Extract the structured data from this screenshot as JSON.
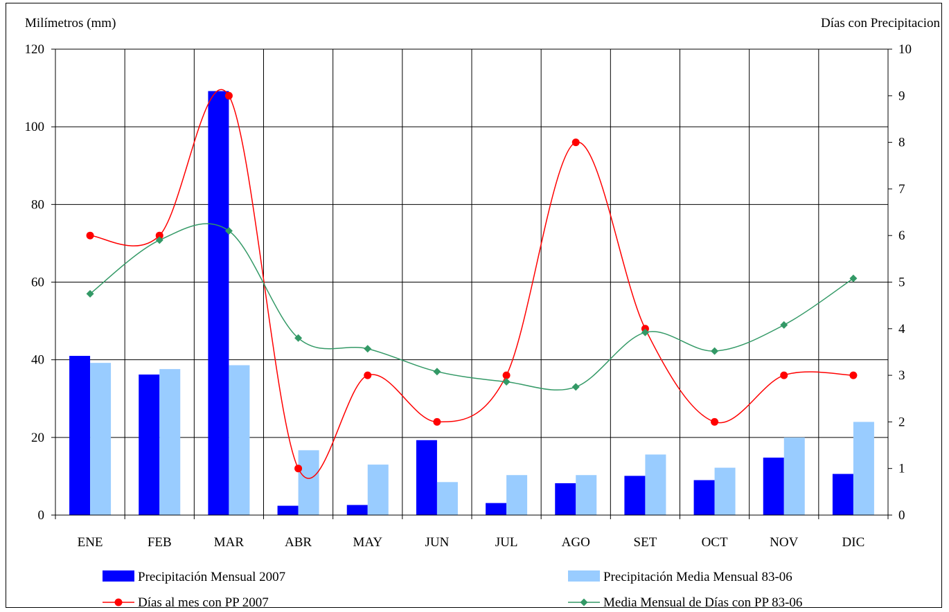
{
  "chart_data": {
    "type": "bar",
    "categories": [
      "ENE",
      "FEB",
      "MAR",
      "ABR",
      "MAY",
      "JUN",
      "JUL",
      "AGO",
      "SET",
      "OCT",
      "NOV",
      "DIC"
    ],
    "ylabel": "Milímetros (mm)",
    "y2label": "Días con Precipitacion",
    "ylim": [
      0,
      120
    ],
    "y2lim": [
      0,
      10
    ],
    "yticks": [
      "0",
      "20",
      "40",
      "60",
      "80",
      "100",
      "120"
    ],
    "y2ticks": [
      "0",
      "1",
      "2",
      "3",
      "4",
      "5",
      "6",
      "7",
      "8",
      "9",
      "10"
    ],
    "grid": true,
    "legend_position": "bottom",
    "series": [
      {
        "name": "Precipitación Mensual 2007",
        "type": "bar",
        "axis": "left",
        "color": "#0000ff",
        "values": [
          41.0,
          36.2,
          109.2,
          2.4,
          2.6,
          19.3,
          3.1,
          8.2,
          10.1,
          9.0,
          14.8,
          10.6
        ]
      },
      {
        "name": "Precipitación Media Mensual 83-06",
        "type": "bar",
        "axis": "left",
        "color": "#99ccff",
        "values": [
          39.2,
          37.6,
          38.6,
          16.7,
          13.0,
          8.5,
          10.3,
          10.3,
          15.6,
          12.2,
          20.0,
          24.0
        ]
      },
      {
        "name": "Días al mes con PP 2007",
        "type": "line",
        "axis": "right",
        "color": "#ff0000",
        "marker": "circle",
        "values": [
          6,
          6,
          9,
          1,
          3,
          2,
          3,
          8,
          4,
          2,
          3,
          3
        ]
      },
      {
        "name": "Media Mensual de Días con PP 83-06",
        "type": "line",
        "axis": "right",
        "color": "#339966",
        "marker": "diamond",
        "values": [
          4.75,
          5.9,
          6.1,
          3.8,
          3.57,
          3.08,
          2.86,
          2.75,
          3.92,
          3.52,
          4.08,
          5.08
        ]
      }
    ]
  }
}
